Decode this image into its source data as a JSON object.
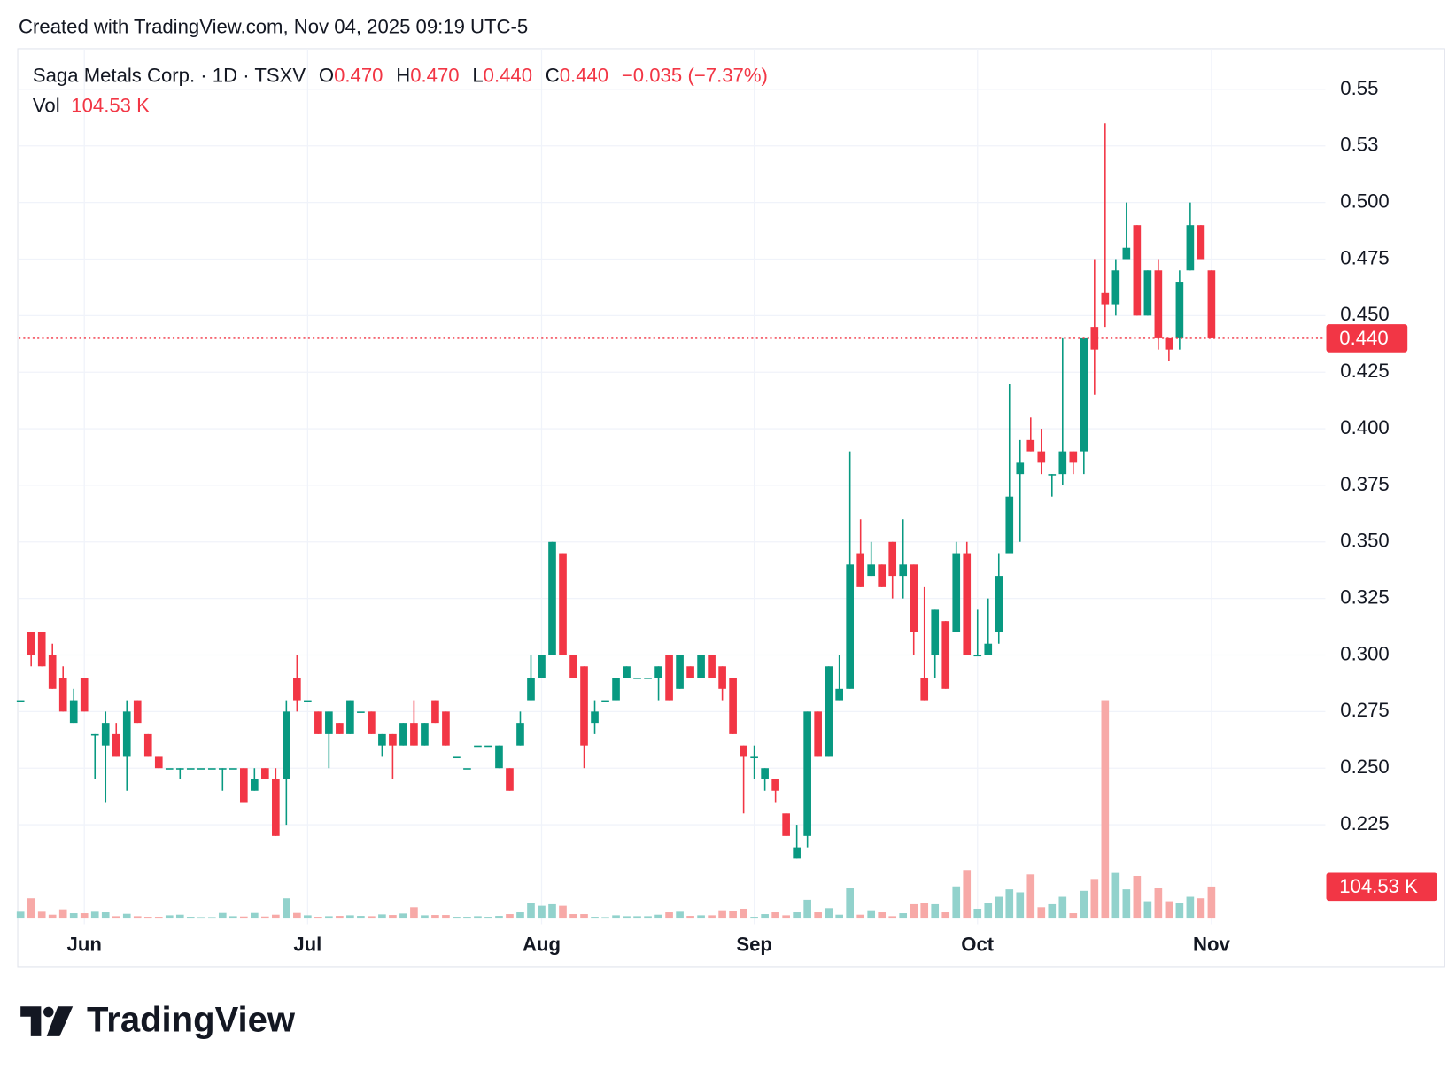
{
  "header": {
    "credit": "Created with TradingView.com, Nov 04, 2025 09:19 UTC-5"
  },
  "chart_data": {
    "type": "candlestick",
    "title": "Saga Metals Corp. · 1D · TSXV",
    "legend": [
      {
        "key": "O",
        "value": {
          "value": 0.47,
          "label": "0.470"
        }
      },
      {
        "key": "H",
        "value": {
          "value": 0.47,
          "label": "0.470"
        }
      },
      {
        "key": "L",
        "value": {
          "value": 0.44,
          "label": "0.440"
        }
      },
      {
        "key": "C",
        "value": {
          "value": 0.44,
          "label": "0.440"
        }
      }
    ],
    "change": {
      "value": -0.035,
      "label": "−0.035"
    },
    "change_percent": {
      "value": -7.37,
      "label": "(−7.37%)"
    },
    "volume_legend": {
      "name": "Vol",
      "value": 104530,
      "label": "104.53 K"
    },
    "last_price": {
      "value": 0.44,
      "label": "0.440"
    },
    "last_volume": {
      "value": 104530,
      "label": "104.53 K"
    },
    "up_color": "#089981",
    "down_color": "#f23645",
    "volume_up_color": "#92d2cc",
    "volume_down_color": "#f7a9a7",
    "grid": true,
    "ylim": [
      0.181,
      0.568
    ],
    "yticks": [
      0.225,
      {
        "value": 0.25,
        "label": "0.250"
      },
      0.275,
      {
        "value": 0.3,
        "label": "0.300"
      },
      0.325,
      {
        "value": 0.35,
        "label": "0.350"
      },
      0.375,
      {
        "value": 0.4,
        "label": "0.400"
      },
      0.425,
      {
        "value": 0.45,
        "label": "0.450"
      },
      0.475,
      {
        "value": 0.5,
        "label": "0.500"
      },
      {
        "value": 0.525,
        "label": "0.53"
      },
      0.55
    ],
    "categories": [
      null,
      null,
      null,
      null,
      null,
      null,
      "Jun",
      null,
      null,
      null,
      null,
      null,
      null,
      null,
      null,
      null,
      null,
      null,
      null,
      null,
      null,
      null,
      null,
      null,
      null,
      null,
      null,
      "Jul",
      null,
      null,
      null,
      null,
      null,
      null,
      null,
      null,
      null,
      null,
      null,
      null,
      null,
      null,
      null,
      null,
      null,
      null,
      null,
      null,
      null,
      "Aug",
      null,
      null,
      null,
      null,
      null,
      null,
      null,
      null,
      null,
      null,
      null,
      null,
      null,
      null,
      null,
      null,
      null,
      null,
      null,
      "Sep",
      null,
      null,
      null,
      null,
      null,
      null,
      null,
      null,
      null,
      null,
      null,
      null,
      null,
      null,
      null,
      null,
      null,
      null,
      null,
      null,
      "Oct",
      null,
      null,
      null,
      null,
      null,
      null,
      null,
      null,
      null,
      null,
      null,
      null,
      null,
      null,
      null,
      null,
      null,
      null,
      null,
      null,
      null,
      "Nov"
    ],
    "open": [
      0.28,
      0.31,
      0.31,
      0.3,
      0.29,
      0.27,
      0.29,
      0.265,
      0.26,
      0.265,
      0.255,
      0.28,
      0.265,
      0.255,
      0.25,
      0.25,
      0.25,
      0.25,
      0.25,
      0.25,
      0.25,
      0.25,
      0.24,
      0.25,
      0.245,
      0.245,
      0.29,
      0.28,
      0.275,
      0.265,
      0.27,
      0.265,
      0.275,
      0.275,
      0.26,
      0.265,
      0.26,
      0.27,
      0.26,
      0.28,
      0.275,
      0.255,
      0.25,
      0.26,
      0.26,
      0.25,
      0.25,
      0.26,
      0.28,
      0.29,
      0.3,
      0.345,
      0.3,
      0.295,
      0.27,
      0.28,
      0.28,
      0.29,
      0.29,
      0.29,
      0.29,
      0.3,
      0.285,
      0.295,
      0.29,
      0.3,
      0.295,
      0.29,
      0.26,
      0.255,
      0.245,
      0.245,
      0.23,
      0.21,
      0.22,
      0.275,
      0.255,
      0.28,
      0.285,
      0.345,
      0.335,
      0.34,
      0.35,
      0.335,
      0.34,
      0.29,
      0.3,
      0.315,
      0.31,
      0.345,
      0.3,
      0.3,
      0.31,
      0.345,
      0.38,
      0.395,
      0.39,
      0.38,
      0.38,
      0.39,
      0.39,
      0.445,
      0.46,
      0.455,
      0.475,
      0.49,
      0.45,
      0.47,
      0.44,
      0.44,
      0.47,
      0.49,
      0.47
    ],
    "high": [
      0.28,
      0.31,
      0.31,
      0.305,
      0.295,
      0.285,
      0.29,
      0.265,
      0.275,
      0.27,
      0.28,
      0.28,
      0.265,
      0.255,
      0.25,
      0.25,
      0.25,
      0.25,
      0.25,
      0.25,
      0.25,
      0.25,
      0.25,
      0.25,
      0.25,
      0.28,
      0.3,
      0.28,
      0.275,
      0.275,
      0.27,
      0.28,
      0.275,
      0.275,
      0.265,
      0.265,
      0.27,
      0.28,
      0.27,
      0.28,
      0.275,
      0.255,
      0.25,
      0.26,
      0.26,
      0.26,
      0.25,
      0.275,
      0.3,
      0.3,
      0.35,
      0.345,
      0.3,
      0.295,
      0.28,
      0.28,
      0.29,
      0.295,
      0.29,
      0.29,
      0.295,
      0.3,
      0.3,
      0.295,
      0.3,
      0.3,
      0.295,
      0.29,
      0.26,
      0.26,
      0.25,
      0.245,
      0.23,
      0.225,
      0.275,
      0.275,
      0.295,
      0.3,
      0.39,
      0.36,
      0.35,
      0.34,
      0.35,
      0.36,
      0.34,
      0.33,
      0.32,
      0.315,
      0.35,
      0.35,
      0.32,
      0.325,
      0.345,
      0.42,
      0.395,
      0.405,
      0.4,
      0.38,
      0.44,
      0.39,
      0.44,
      0.475,
      0.535,
      0.475,
      0.5,
      0.49,
      0.47,
      0.475,
      0.44,
      0.47,
      0.5,
      0.49,
      0.47
    ],
    "low": [
      0.28,
      0.295,
      0.295,
      0.285,
      0.275,
      0.27,
      0.275,
      0.245,
      0.235,
      0.255,
      0.24,
      0.27,
      0.255,
      0.25,
      0.25,
      0.245,
      0.25,
      0.25,
      0.25,
      0.24,
      0.25,
      0.235,
      0.24,
      0.245,
      0.22,
      0.225,
      0.275,
      0.28,
      0.265,
      0.25,
      0.265,
      0.265,
      0.275,
      0.265,
      0.255,
      0.245,
      0.26,
      0.26,
      0.26,
      0.27,
      0.26,
      0.255,
      0.25,
      0.26,
      0.26,
      0.25,
      0.24,
      0.26,
      0.28,
      0.29,
      0.3,
      0.3,
      0.29,
      0.25,
      0.265,
      0.28,
      0.28,
      0.29,
      0.29,
      0.29,
      0.28,
      0.28,
      0.285,
      0.29,
      0.29,
      0.29,
      0.28,
      0.265,
      0.23,
      0.245,
      0.24,
      0.235,
      0.22,
      0.21,
      0.215,
      0.255,
      0.255,
      0.28,
      0.285,
      0.33,
      0.335,
      0.33,
      0.325,
      0.325,
      0.3,
      0.28,
      0.29,
      0.285,
      0.31,
      0.3,
      0.3,
      0.3,
      0.305,
      0.345,
      0.35,
      0.39,
      0.38,
      0.37,
      0.375,
      0.38,
      0.38,
      0.415,
      0.445,
      0.45,
      0.475,
      0.45,
      0.45,
      0.435,
      0.43,
      0.435,
      0.47,
      0.475,
      0.44
    ],
    "close": [
      0.28,
      0.3,
      0.295,
      0.285,
      0.275,
      0.28,
      0.275,
      0.265,
      0.27,
      0.255,
      0.275,
      0.27,
      0.255,
      0.25,
      0.25,
      0.25,
      0.25,
      0.25,
      0.25,
      0.25,
      0.25,
      0.235,
      0.245,
      0.245,
      0.22,
      0.275,
      0.28,
      0.28,
      0.265,
      0.275,
      0.265,
      0.28,
      0.275,
      0.265,
      0.265,
      0.26,
      0.27,
      0.26,
      0.27,
      0.27,
      0.26,
      0.255,
      0.25,
      0.26,
      0.26,
      0.26,
      0.24,
      0.27,
      0.29,
      0.3,
      0.35,
      0.3,
      0.29,
      0.26,
      0.275,
      0.28,
      0.29,
      0.295,
      0.29,
      0.29,
      0.295,
      0.28,
      0.3,
      0.29,
      0.3,
      0.29,
      0.285,
      0.265,
      0.255,
      0.255,
      0.25,
      0.24,
      0.22,
      0.215,
      0.275,
      0.255,
      0.295,
      0.285,
      0.34,
      0.33,
      0.34,
      0.33,
      0.335,
      0.34,
      0.31,
      0.28,
      0.32,
      0.285,
      0.345,
      0.3,
      0.3,
      0.305,
      0.335,
      0.37,
      0.385,
      0.39,
      0.385,
      0.38,
      0.39,
      0.385,
      0.44,
      0.435,
      0.455,
      0.47,
      0.48,
      0.45,
      0.47,
      0.44,
      0.435,
      0.465,
      0.49,
      0.475,
      0.44
    ],
    "volume": [
      20000,
      65000,
      20000,
      10000,
      28000,
      15000,
      15000,
      20000,
      18000,
      5000,
      13000,
      5000,
      3000,
      3000,
      8000,
      10000,
      3000,
      2000,
      2000,
      16000,
      5000,
      4000,
      16000,
      4000,
      10000,
      65000,
      16000,
      8000,
      3000,
      5000,
      6000,
      8000,
      6000,
      5000,
      11000,
      9000,
      14000,
      35000,
      8000,
      9000,
      9000,
      3000,
      3000,
      5000,
      3000,
      6000,
      12000,
      18000,
      50000,
      40000,
      45000,
      40000,
      12000,
      12000,
      3000,
      2000,
      8000,
      5000,
      5000,
      5000,
      10000,
      18000,
      20000,
      6000,
      8000,
      8000,
      25000,
      22000,
      30000,
      3000,
      12000,
      18000,
      8000,
      18000,
      60000,
      18000,
      32000,
      10000,
      100000,
      10000,
      25000,
      18000,
      5000,
      15000,
      45000,
      50000,
      45000,
      18000,
      105000,
      160000,
      30000,
      50000,
      70000,
      95000,
      85000,
      145000,
      35000,
      45000,
      70000,
      15000,
      90000,
      130000,
      730000,
      150000,
      95000,
      140000,
      55000,
      100000,
      55000,
      50000,
      70000,
      65000,
      104530
    ]
  },
  "footer": {
    "brand": "TradingView"
  }
}
